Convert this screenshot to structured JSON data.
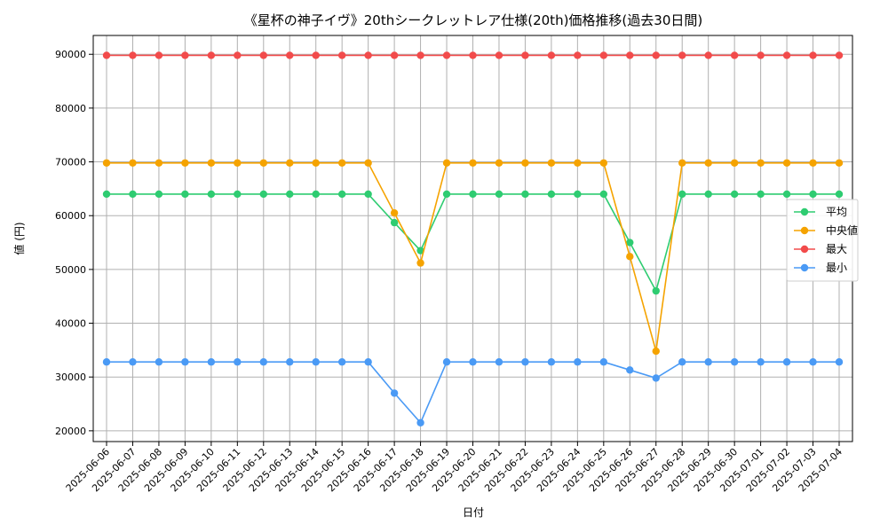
{
  "chart_data": {
    "type": "line",
    "title": "《星杯の神子イヴ》20thシークレットレア仕様(20th)価格推移(過去30日間)",
    "xlabel": "日付",
    "ylabel": "値 (円)",
    "ylim": [
      18000,
      93500
    ],
    "yticks": [
      20000,
      30000,
      40000,
      50000,
      60000,
      70000,
      80000,
      90000
    ],
    "grid": true,
    "legend_position": "center-right",
    "categories": [
      "2025-06-06",
      "2025-06-07",
      "2025-06-08",
      "2025-06-09",
      "2025-06-10",
      "2025-06-11",
      "2025-06-12",
      "2025-06-13",
      "2025-06-14",
      "2025-06-15",
      "2025-06-16",
      "2025-06-17",
      "2025-06-18",
      "2025-06-19",
      "2025-06-20",
      "2025-06-21",
      "2025-06-22",
      "2025-06-23",
      "2025-06-24",
      "2025-06-25",
      "2025-06-26",
      "2025-06-27",
      "2025-06-28",
      "2025-06-29",
      "2025-06-30",
      "2025-07-01",
      "2025-07-02",
      "2025-07-03",
      "2025-07-04"
    ],
    "series": [
      {
        "name": "平均",
        "color": "#2ecc71",
        "values": [
          64000,
          64000,
          64000,
          64000,
          64000,
          64000,
          64000,
          64000,
          64000,
          64000,
          64000,
          58700,
          53500,
          64000,
          64000,
          64000,
          64000,
          64000,
          64000,
          64000,
          55000,
          46000,
          64000,
          64000,
          64000,
          64000,
          64000,
          64000,
          64000
        ]
      },
      {
        "name": "中央値",
        "color": "#f5a300",
        "values": [
          69800,
          69800,
          69800,
          69800,
          69800,
          69800,
          69800,
          69800,
          69800,
          69800,
          69800,
          60500,
          51200,
          69800,
          69800,
          69800,
          69800,
          69800,
          69800,
          69800,
          52400,
          34800,
          69800,
          69800,
          69800,
          69800,
          69800,
          69800,
          69800
        ]
      },
      {
        "name": "最大",
        "color": "#f24b4b",
        "values": [
          89800,
          89800,
          89800,
          89800,
          89800,
          89800,
          89800,
          89800,
          89800,
          89800,
          89800,
          89800,
          89800,
          89800,
          89800,
          89800,
          89800,
          89800,
          89800,
          89800,
          89800,
          89800,
          89800,
          89800,
          89800,
          89800,
          89800,
          89800,
          89800
        ]
      },
      {
        "name": "最小",
        "color": "#4a9af5",
        "values": [
          32800,
          32800,
          32800,
          32800,
          32800,
          32800,
          32800,
          32800,
          32800,
          32800,
          32800,
          27000,
          21500,
          32800,
          32800,
          32800,
          32800,
          32800,
          32800,
          32800,
          31300,
          29800,
          32800,
          32800,
          32800,
          32800,
          32800,
          32800,
          32800
        ]
      }
    ]
  }
}
